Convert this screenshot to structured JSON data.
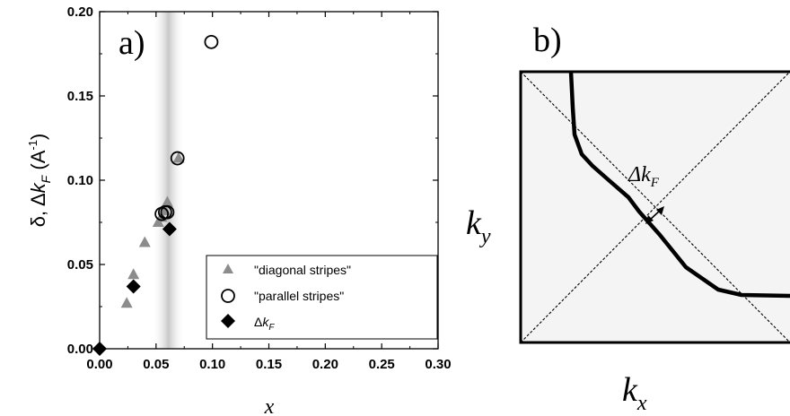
{
  "chart_data": [
    {
      "type": "scatter",
      "panel_label": "a)",
      "xlabel": "x",
      "ylabel": "δ, Δk_F (A^-1)",
      "ylabel_parts": {
        "prefix": "δ, Δ",
        "k": "k",
        "sub": "F",
        "paren": " (A",
        "sup": "-1",
        "close": ")"
      },
      "xlim": [
        0.0,
        0.3
      ],
      "ylim": [
        0.0,
        0.2
      ],
      "x_ticks": [
        "0.00",
        "0.05",
        "0.10",
        "0.15",
        "0.20",
        "0.25",
        "0.30"
      ],
      "y_ticks": [
        "0.00",
        "0.05",
        "0.10",
        "0.15",
        "0.20"
      ],
      "shaded_band": {
        "center": 0.061,
        "halfwidth": 0.009,
        "color": "#c8c8c8"
      },
      "legend_position": "bottom-right",
      "series": [
        {
          "name": "\"diagonal stripes\"",
          "marker": "triangle",
          "color": "#8c8c8c",
          "points": [
            [
              0.024,
              0.027
            ],
            [
              0.03,
              0.044
            ],
            [
              0.04,
              0.063
            ],
            [
              0.052,
              0.075
            ],
            [
              0.055,
              0.078
            ],
            [
              0.058,
              0.082
            ],
            [
              0.06,
              0.087
            ],
            [
              0.07,
              0.113
            ]
          ]
        },
        {
          "name": "\"parallel stripes\"",
          "marker": "open-circle",
          "color": "#000000",
          "points": [
            [
              0.055,
              0.08
            ],
            [
              0.058,
              0.081
            ],
            [
              0.06,
              0.081
            ],
            [
              0.069,
              0.113
            ],
            [
              0.099,
              0.182
            ]
          ]
        },
        {
          "name": "Δk_F",
          "legend_parts": {
            "prefix": "Δ",
            "k": "k",
            "sub": "F"
          },
          "marker": "diamond",
          "color": "#000000",
          "points": [
            [
              0.0,
              0.0
            ],
            [
              0.03,
              0.037
            ],
            [
              0.062,
              0.071
            ]
          ]
        }
      ]
    },
    {
      "type": "diagram",
      "panel_label": "b)",
      "xlabel": "k",
      "xlabel_sub": "x",
      "ylabel": "k",
      "ylabel_sub": "y",
      "annotation": {
        "prefix": "Δ",
        "k": "k",
        "sub": "F"
      },
      "fill_color": "#f4f4f4"
    }
  ]
}
